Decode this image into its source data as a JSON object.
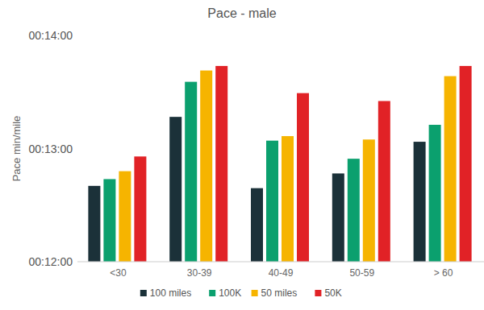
{
  "chart_data": {
    "type": "bar",
    "title": "Pace - male",
    "y_label": "Pace min/mile",
    "categories": [
      "<30",
      "30-39",
      "40-49",
      "50-59",
      "> 60"
    ],
    "series": [
      {
        "name": "100 miles",
        "color": "#1b3139",
        "values": [
          12.67,
          13.28,
          12.65,
          12.78,
          13.06
        ]
      },
      {
        "name": "100K",
        "color": "#0ba06e",
        "values": [
          12.73,
          13.59,
          13.07,
          12.91,
          13.21
        ]
      },
      {
        "name": "50 miles",
        "color": "#f6b400",
        "values": [
          12.8,
          13.69,
          13.11,
          13.08,
          13.64
        ]
      },
      {
        "name": "50K",
        "color": "#e12226",
        "values": [
          12.93,
          13.73,
          13.49,
          13.42,
          13.73
        ]
      }
    ],
    "ylim": [
      12,
      14
    ],
    "yticks": [
      {
        "value": 12,
        "label": "00:12:00"
      },
      {
        "value": 13,
        "label": "00:13:00"
      },
      {
        "value": 14,
        "label": "00:14:00"
      }
    ],
    "grid": false,
    "legend": "bottom"
  }
}
